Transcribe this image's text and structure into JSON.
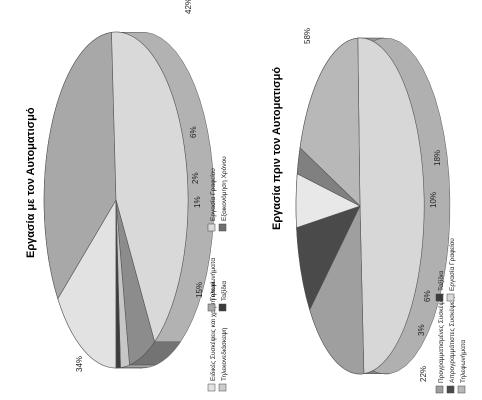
{
  "chart_data": [
    {
      "type": "pie",
      "title": "Εργασία με τον Αυτοματισμό",
      "slices": [
        {
          "label": "Ειδικές Συσκέψεις και χρήση email",
          "value": 15,
          "color": "#e2e2e2"
        },
        {
          "label": "Τηλεφωνήματα",
          "value": 34,
          "color": "#a8a8a8"
        },
        {
          "label": "Εργασία Γραφείου",
          "value": 42,
          "color": "#d9d9d9"
        },
        {
          "label": "Τηλεκονεδιάσκεψη",
          "value": 6,
          "color": "#8c8c8c"
        },
        {
          "label": "Ταξίδια",
          "value": 2,
          "color": "#c6c6c6"
        },
        {
          "label": "Εξοικονόμηση Χρόνου",
          "value": 1,
          "color": "#3c3c3c"
        }
      ],
      "value_labels": [
        "15%",
        "34%",
        "42%",
        "6%",
        "2%",
        "1%"
      ],
      "legend": [
        "Ειδικές Συσκέψεις και χρήση email",
        "Τηλεκονεδιάσκεψη",
        "Τηλεφωνήματα",
        "Ταξίδια",
        "Εργασία Γραφείου",
        "Εξοικονόμηση Χρόνου"
      ],
      "legend_colors": [
        "#e2e2e2",
        "#cccccc",
        "#a8a8a8",
        "#3c3c3c",
        "#d9d9d9",
        "#6f6f6f"
      ]
    },
    {
      "type": "pie",
      "title": "Εργασία πριν τον Αυτοματισμό",
      "slices": [
        {
          "label": "Εργασία Γραφείου",
          "value": 58,
          "color": "#d7d7d7"
        },
        {
          "label": "Προγραμματισμένες Συσκέψεις",
          "value": 18,
          "color": "#9f9f9f"
        },
        {
          "label": "Απρογραμμάτιστες Συσκέψεις",
          "value": 10,
          "color": "#4a4a4a"
        },
        {
          "label": "Τηλεφωνήματα",
          "value": 6,
          "color": "#e8e8e8"
        },
        {
          "label": "Ταξίδια",
          "value": 3,
          "color": "#808080"
        },
        {
          "label": "",
          "value": 22,
          "color": "#b8b8b8"
        }
      ],
      "value_labels": [
        "58%",
        "18%",
        "10%",
        "6%",
        "3%",
        "22%"
      ],
      "legend": [
        "Προγραμματισμένες Συσκέψεις",
        "Απρογραμμάτιστες Συσκέψεις",
        "Τηλεφωνήματα",
        "Ταξίδια",
        "Εργασία Γραφείου"
      ],
      "legend_colors": [
        "#9f9f9f",
        "#4a4a4a",
        "#b8b8b8",
        "#3c3c3c",
        "#d7d7d7"
      ]
    }
  ]
}
